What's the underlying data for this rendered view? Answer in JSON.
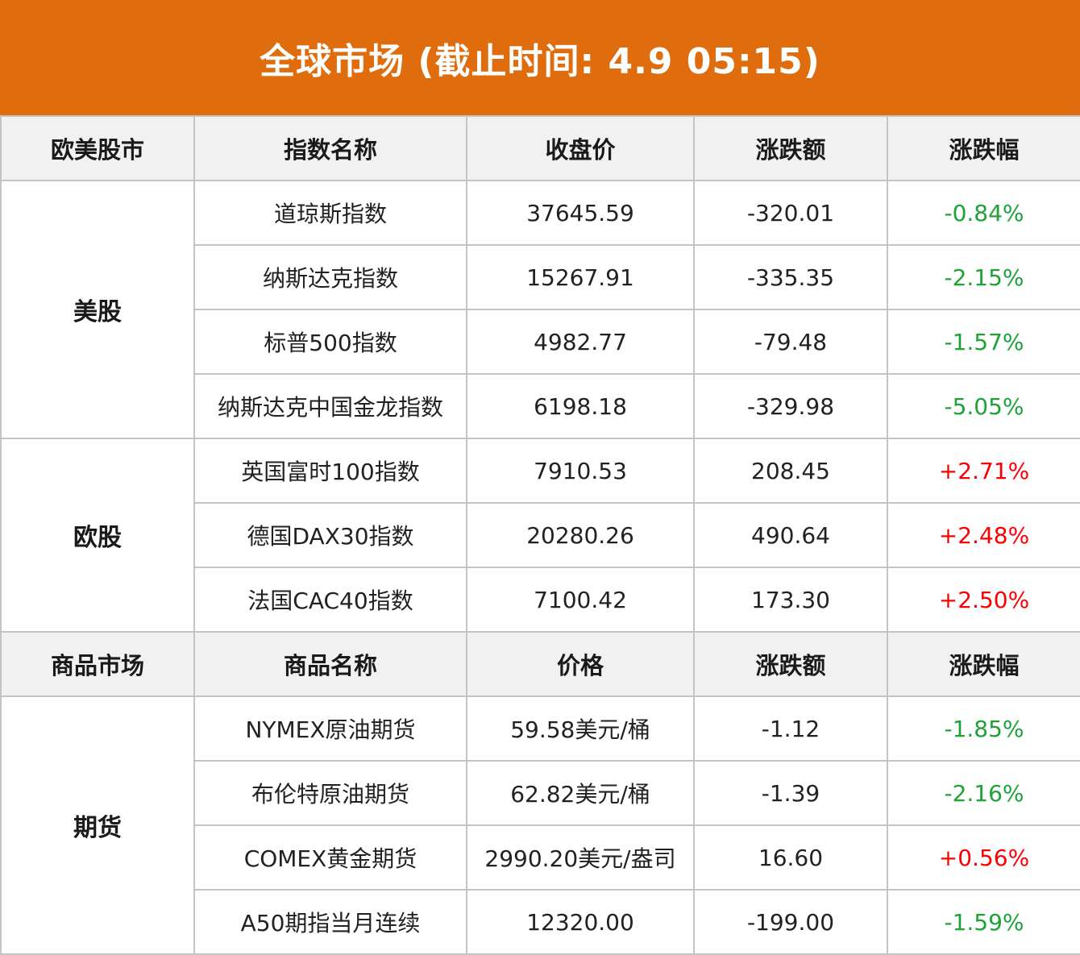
{
  "banner": {
    "title": "全球市场 (截止时间: 4.9 05:15)"
  },
  "colors": {
    "banner_bg": "#E06D0D",
    "banner_text": "#FFFFFF",
    "header_bg": "#F1F1F1",
    "border": "#C4C4C4",
    "text": "#212121",
    "up": "#FA0000",
    "down": "#1CA235",
    "row_bg": "#FFFFFF"
  },
  "chart_data": {
    "type": "table",
    "title": "全球市场 (截止时间: 4.9 05:15)",
    "sections": [
      {
        "header": {
          "group": "欧美股市",
          "name": "指数名称",
          "value": "收盘价",
          "change": "涨跌额",
          "pct": "涨跌幅"
        },
        "groups": [
          {
            "label": "美股",
            "rows": [
              {
                "name": "道琼斯指数",
                "value": "37645.59",
                "change": "-320.01",
                "pct": "-0.84%",
                "dir": "down"
              },
              {
                "name": "纳斯达克指数",
                "value": "15267.91",
                "change": "-335.35",
                "pct": "-2.15%",
                "dir": "down"
              },
              {
                "name": "标普500指数",
                "value": "4982.77",
                "change": "-79.48",
                "pct": "-1.57%",
                "dir": "down"
              },
              {
                "name": "纳斯达克中国金龙指数",
                "value": "6198.18",
                "change": "-329.98",
                "pct": "-5.05%",
                "dir": "down"
              }
            ]
          },
          {
            "label": "欧股",
            "rows": [
              {
                "name": "英国富时100指数",
                "value": "7910.53",
                "change": "208.45",
                "pct": "+2.71%",
                "dir": "up"
              },
              {
                "name": "德国DAX30指数",
                "value": "20280.26",
                "change": "490.64",
                "pct": "+2.48%",
                "dir": "up"
              },
              {
                "name": "法国CAC40指数",
                "value": "7100.42",
                "change": "173.30",
                "pct": "+2.50%",
                "dir": "up"
              }
            ]
          }
        ]
      },
      {
        "header": {
          "group": "商品市场",
          "name": "商品名称",
          "value": "价格",
          "change": "涨跌额",
          "pct": "涨跌幅"
        },
        "groups": [
          {
            "label": "期货",
            "rows": [
              {
                "name": "NYMEX原油期货",
                "value": "59.58美元/桶",
                "change": "-1.12",
                "pct": "-1.85%",
                "dir": "down"
              },
              {
                "name": "布伦特原油期货",
                "value": "62.82美元/桶",
                "change": "-1.39",
                "pct": "-2.16%",
                "dir": "down"
              },
              {
                "name": "COMEX黄金期货",
                "value": "2990.20美元/盎司",
                "change": "16.60",
                "pct": "+0.56%",
                "dir": "up"
              },
              {
                "name": "A50期指当月连续",
                "value": "12320.00",
                "change": "-199.00",
                "pct": "-1.59%",
                "dir": "down"
              }
            ]
          }
        ]
      }
    ]
  }
}
